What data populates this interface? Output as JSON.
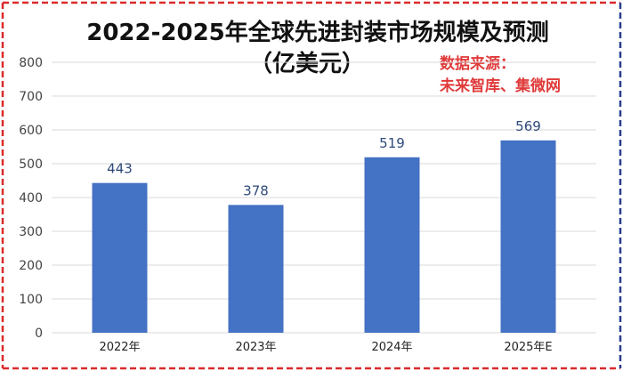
{
  "chart_data": {
    "type": "bar",
    "title_line1": "2022-2025年全球先进封装市场规模及预测",
    "title_line2": "（亿美元）",
    "source_line1": "数据来源：",
    "source_line2": "未来智库、集微网",
    "categories": [
      "2022年",
      "2023年",
      "2024年",
      "2025年E"
    ],
    "values": [
      443,
      378,
      519,
      569
    ],
    "ylim": [
      0,
      800
    ],
    "yticks": [
      0,
      100,
      200,
      300,
      400,
      500,
      600,
      700,
      800
    ],
    "grid": true,
    "bar_color": "#4472c4"
  },
  "colors": {
    "border_left": "#d92b2b",
    "border_right": "#2b3f8f",
    "grid": "#d9d9d9"
  }
}
